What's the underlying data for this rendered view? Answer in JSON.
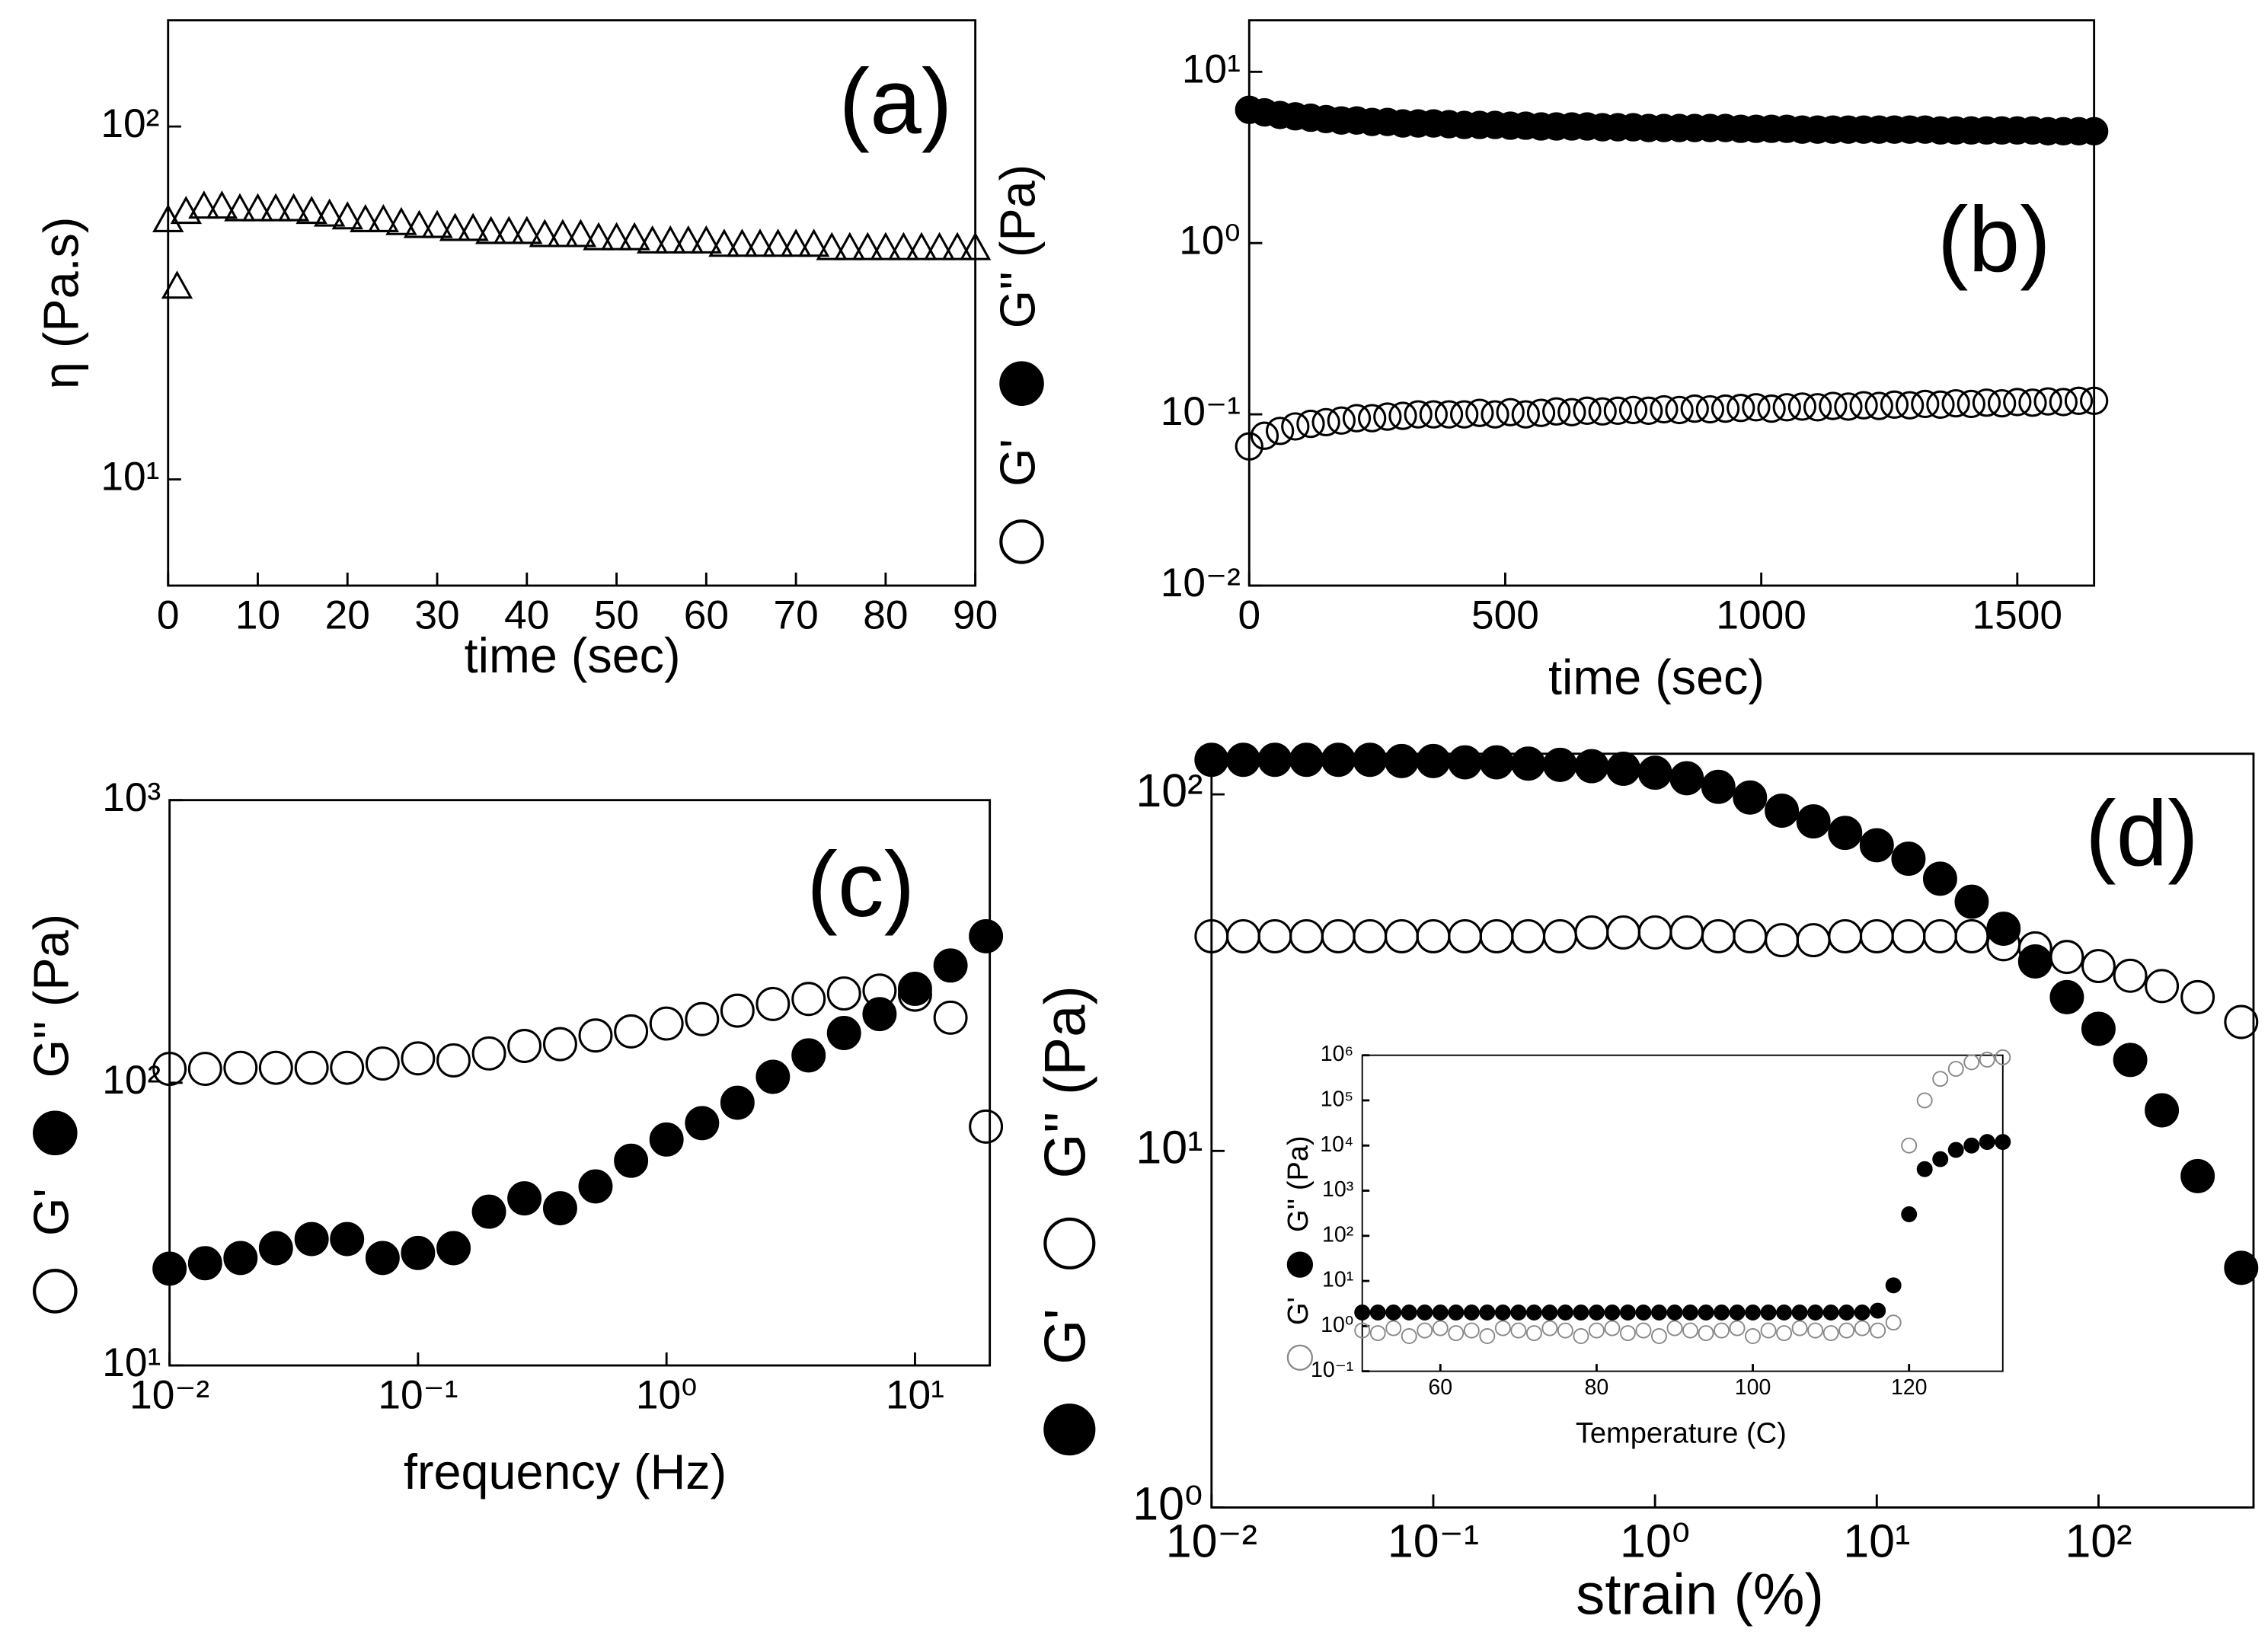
{
  "chart_data": [
    {
      "type": "scatter",
      "title": "(a)",
      "xlabel": "time (sec)",
      "ylabel": "η (Pa.s)",
      "xlim": [
        0,
        90
      ],
      "xticks": [
        0,
        10,
        20,
        30,
        40,
        50,
        60,
        70,
        80,
        90
      ],
      "ylim": [
        5,
        200
      ],
      "ylog": true,
      "yticks": [
        {
          "value": 10,
          "label": "10¹"
        },
        {
          "value": 100,
          "label": "10²"
        }
      ],
      "x": [
        0,
        2,
        4,
        6,
        8,
        10,
        12,
        14,
        16,
        18,
        20,
        22,
        24,
        26,
        28,
        30,
        32,
        34,
        36,
        38,
        40,
        42,
        44,
        46,
        48,
        50,
        52,
        54,
        56,
        58,
        60,
        62,
        64,
        66,
        68,
        70,
        72,
        74,
        76,
        78,
        80,
        82,
        84,
        86,
        88,
        90
      ],
      "series": [
        {
          "marker": "triangle-open",
          "color": "#000000",
          "values": [
            54,
            57,
            59,
            59,
            58,
            58,
            58,
            58,
            57,
            56,
            55,
            54,
            54,
            53,
            52,
            52,
            51,
            51,
            50,
            50,
            50,
            49,
            49,
            49,
            48,
            48,
            48,
            47,
            47,
            47,
            47,
            46,
            46,
            46,
            46,
            46,
            46,
            45,
            45,
            45,
            45,
            45,
            45,
            45,
            45,
            45
          ]
        },
        {
          "marker": "triangle-open",
          "color": "#000000",
          "x": [
            1
          ],
          "values": [
            35
          ]
        }
      ]
    },
    {
      "type": "scatter",
      "title": "(b)",
      "xlabel": "time (sec)",
      "ylabel": "(Pa)",
      "xlim": [
        0,
        1650
      ],
      "xticks": [
        0,
        500,
        1000,
        1500
      ],
      "ylim": [
        0.01,
        20
      ],
      "ylog": true,
      "yticks": [
        {
          "value": 0.01,
          "label": "10⁻²"
        },
        {
          "value": 0.1,
          "label": "10⁻¹"
        },
        {
          "value": 1,
          "label": "10⁰"
        },
        {
          "value": 10,
          "label": "10¹"
        }
      ],
      "x": [
        0,
        30,
        60,
        90,
        120,
        150,
        180,
        210,
        240,
        270,
        300,
        330,
        360,
        390,
        420,
        450,
        480,
        510,
        540,
        570,
        600,
        630,
        660,
        690,
        720,
        750,
        780,
        810,
        840,
        870,
        900,
        930,
        960,
        990,
        1020,
        1050,
        1080,
        1110,
        1140,
        1170,
        1200,
        1230,
        1260,
        1290,
        1320,
        1350,
        1380,
        1410,
        1440,
        1470,
        1500,
        1530,
        1560,
        1590,
        1620,
        1650
      ],
      "series": [
        {
          "name": "G'",
          "marker": "circle-open",
          "color": "#000000",
          "values": [
            0.065,
            0.075,
            0.08,
            0.085,
            0.088,
            0.09,
            0.092,
            0.095,
            0.095,
            0.097,
            0.098,
            0.1,
            0.1,
            0.1,
            0.1,
            0.102,
            0.1,
            0.103,
            0.1,
            0.102,
            0.104,
            0.103,
            0.105,
            0.104,
            0.105,
            0.106,
            0.105,
            0.107,
            0.106,
            0.108,
            0.107,
            0.108,
            0.109,
            0.11,
            0.108,
            0.11,
            0.111,
            0.11,
            0.112,
            0.111,
            0.113,
            0.112,
            0.114,
            0.113,
            0.115,
            0.114,
            0.116,
            0.115,
            0.117,
            0.116,
            0.118,
            0.117,
            0.119,
            0.118,
            0.12,
            0.12
          ]
        },
        {
          "name": "G''",
          "marker": "circle-filled",
          "color": "#000000",
          "values": [
            6,
            5.8,
            5.6,
            5.5,
            5.4,
            5.3,
            5.2,
            5.2,
            5.1,
            5.1,
            5,
            5,
            5,
            4.95,
            4.9,
            4.9,
            4.9,
            4.85,
            4.85,
            4.8,
            4.8,
            4.8,
            4.8,
            4.75,
            4.75,
            4.75,
            4.7,
            4.7,
            4.7,
            4.7,
            4.7,
            4.7,
            4.65,
            4.65,
            4.65,
            4.65,
            4.6,
            4.6,
            4.6,
            4.6,
            4.6,
            4.6,
            4.6,
            4.6,
            4.6,
            4.55,
            4.55,
            4.55,
            4.55,
            4.55,
            4.55,
            4.55,
            4.5,
            4.5,
            4.5,
            4.5
          ]
        }
      ]
    },
    {
      "type": "scatter",
      "title": "(c)",
      "xlabel": "frequency (Hz)",
      "ylabel": "(Pa)",
      "xlim": [
        0.01,
        20
      ],
      "xlog": true,
      "xticks": [
        {
          "value": 0.01,
          "label": "10⁻²"
        },
        {
          "value": 0.1,
          "label": "10⁻¹"
        },
        {
          "value": 1,
          "label": "10⁰"
        },
        {
          "value": 10,
          "label": "10¹"
        }
      ],
      "ylim": [
        10,
        1000
      ],
      "ylog": true,
      "yticks": [
        {
          "value": 10,
          "label": "10¹"
        },
        {
          "value": 100,
          "label": "10²"
        },
        {
          "value": 1000,
          "label": "10³"
        }
      ],
      "x": [
        0.01,
        0.0139,
        0.0193,
        0.0268,
        0.0373,
        0.0518,
        0.072,
        0.1,
        0.139,
        0.193,
        0.268,
        0.373,
        0.518,
        0.72,
        1,
        1.39,
        1.93,
        2.68,
        3.73,
        5.18,
        7.2,
        10,
        13.9,
        19.3
      ],
      "series": [
        {
          "name": "G'",
          "marker": "circle-open",
          "color": "#000000",
          "values": [
            112,
            112,
            113,
            113,
            113,
            113,
            117,
            122,
            120,
            127,
            135,
            137,
            147,
            152,
            162,
            168,
            180,
            190,
            198,
            207,
            212,
            205,
            170,
            70
          ]
        },
        {
          "name": "G''",
          "marker": "circle-filled",
          "color": "#000000",
          "values": [
            22,
            23,
            24,
            26,
            28,
            28,
            24,
            25,
            26,
            35,
            39,
            36,
            43,
            53,
            63,
            72,
            85,
            105,
            125,
            150,
            175,
            215,
            260,
            330
          ]
        }
      ]
    },
    {
      "type": "scatter",
      "title": "(d)",
      "xlabel": "strain (%)",
      "ylabel": "(Pa)",
      "xlim": [
        0.01,
        500
      ],
      "xlog": true,
      "xticks": [
        {
          "value": 0.01,
          "label": "10⁻²"
        },
        {
          "value": 0.1,
          "label": "10⁻¹"
        },
        {
          "value": 1,
          "label": "10⁰"
        },
        {
          "value": 10,
          "label": "10¹"
        },
        {
          "value": 100,
          "label": "10²"
        }
      ],
      "ylim": [
        1,
        130
      ],
      "ylog": true,
      "yticks": [
        {
          "value": 1,
          "label": "10⁰"
        },
        {
          "value": 10,
          "label": "10¹"
        },
        {
          "value": 100,
          "label": "10²"
        }
      ],
      "x": [
        0.01,
        0.0139,
        0.0193,
        0.0268,
        0.0373,
        0.0518,
        0.072,
        0.1,
        0.139,
        0.193,
        0.268,
        0.373,
        0.518,
        0.72,
        1,
        1.39,
        1.93,
        2.68,
        3.73,
        5.18,
        7.2,
        10,
        13.9,
        19.3,
        26.8,
        37.3,
        51.8,
        72,
        100,
        139,
        193,
        280,
        440
      ],
      "series": [
        {
          "name": "G'",
          "marker": "circle-filled",
          "color": "#000000",
          "values": [
            125,
            125,
            125,
            125,
            125,
            125,
            124,
            124,
            123,
            123,
            122,
            121,
            120,
            118,
            115,
            111,
            105,
            98,
            90,
            84,
            78,
            72,
            66,
            58,
            50,
            42,
            34,
            27,
            22,
            18,
            13,
            8.5,
            4.7
          ]
        },
        {
          "name": "G''",
          "marker": "circle-open",
          "color": "#000000",
          "values": [
            40,
            40,
            40,
            40,
            40,
            40,
            40,
            40,
            40,
            40,
            40,
            40,
            41,
            41,
            41,
            41,
            40,
            40,
            39,
            39,
            40,
            40,
            40,
            40,
            40,
            38,
            37,
            35,
            33,
            31,
            29,
            27,
            23
          ]
        }
      ]
    },
    {
      "type": "scatter",
      "xlabel": "Temperature (C)",
      "ylabel": "(Pa)",
      "xlim": [
        50,
        132
      ],
      "xticks": [
        60,
        80,
        100,
        120
      ],
      "ylim": [
        0.1,
        1000000
      ],
      "ylog": true,
      "yticks": [
        {
          "value": 0.1,
          "label": "10⁻¹"
        },
        {
          "value": 1,
          "label": "10⁰"
        },
        {
          "value": 10,
          "label": "10¹"
        },
        {
          "value": 100,
          "label": "10²"
        },
        {
          "value": 1000,
          "label": "10³"
        },
        {
          "value": 10000,
          "label": "10⁴"
        },
        {
          "value": 100000,
          "label": "10⁵"
        },
        {
          "value": 1000000,
          "label": "10⁶"
        }
      ],
      "x": [
        50,
        52,
        54,
        56,
        58,
        60,
        62,
        64,
        66,
        68,
        70,
        72,
        74,
        76,
        78,
        80,
        82,
        84,
        86,
        88,
        90,
        92,
        94,
        96,
        98,
        100,
        102,
        104,
        106,
        108,
        110,
        112,
        114,
        116,
        118,
        120,
        122,
        124,
        126,
        128,
        130,
        132
      ],
      "series": [
        {
          "name": "G'",
          "marker": "circle-open",
          "color": "#888888",
          "values": [
            0.8,
            0.7,
            0.9,
            0.6,
            0.8,
            0.9,
            0.7,
            0.8,
            0.6,
            0.9,
            0.8,
            0.7,
            0.9,
            0.8,
            0.6,
            0.8,
            0.9,
            0.7,
            0.8,
            0.6,
            0.9,
            0.8,
            0.7,
            0.8,
            0.9,
            0.6,
            0.8,
            0.7,
            0.9,
            0.8,
            0.7,
            0.8,
            0.9,
            0.8,
            1.2,
            10000,
            100000,
            300000,
            500000,
            700000,
            800000,
            900000
          ]
        },
        {
          "name": "G''",
          "marker": "circle-filled",
          "color": "#000000",
          "values": [
            2,
            2,
            2,
            2,
            2,
            2,
            2,
            2,
            2,
            2,
            2,
            2,
            2,
            2,
            2,
            2,
            2,
            2,
            2,
            2,
            2,
            2,
            2,
            2,
            2,
            2,
            2,
            2,
            2,
            2,
            2,
            2,
            2,
            2.2,
            8,
            300,
            3000,
            5000,
            8000,
            10000,
            12000,
            12000
          ]
        }
      ]
    }
  ]
}
